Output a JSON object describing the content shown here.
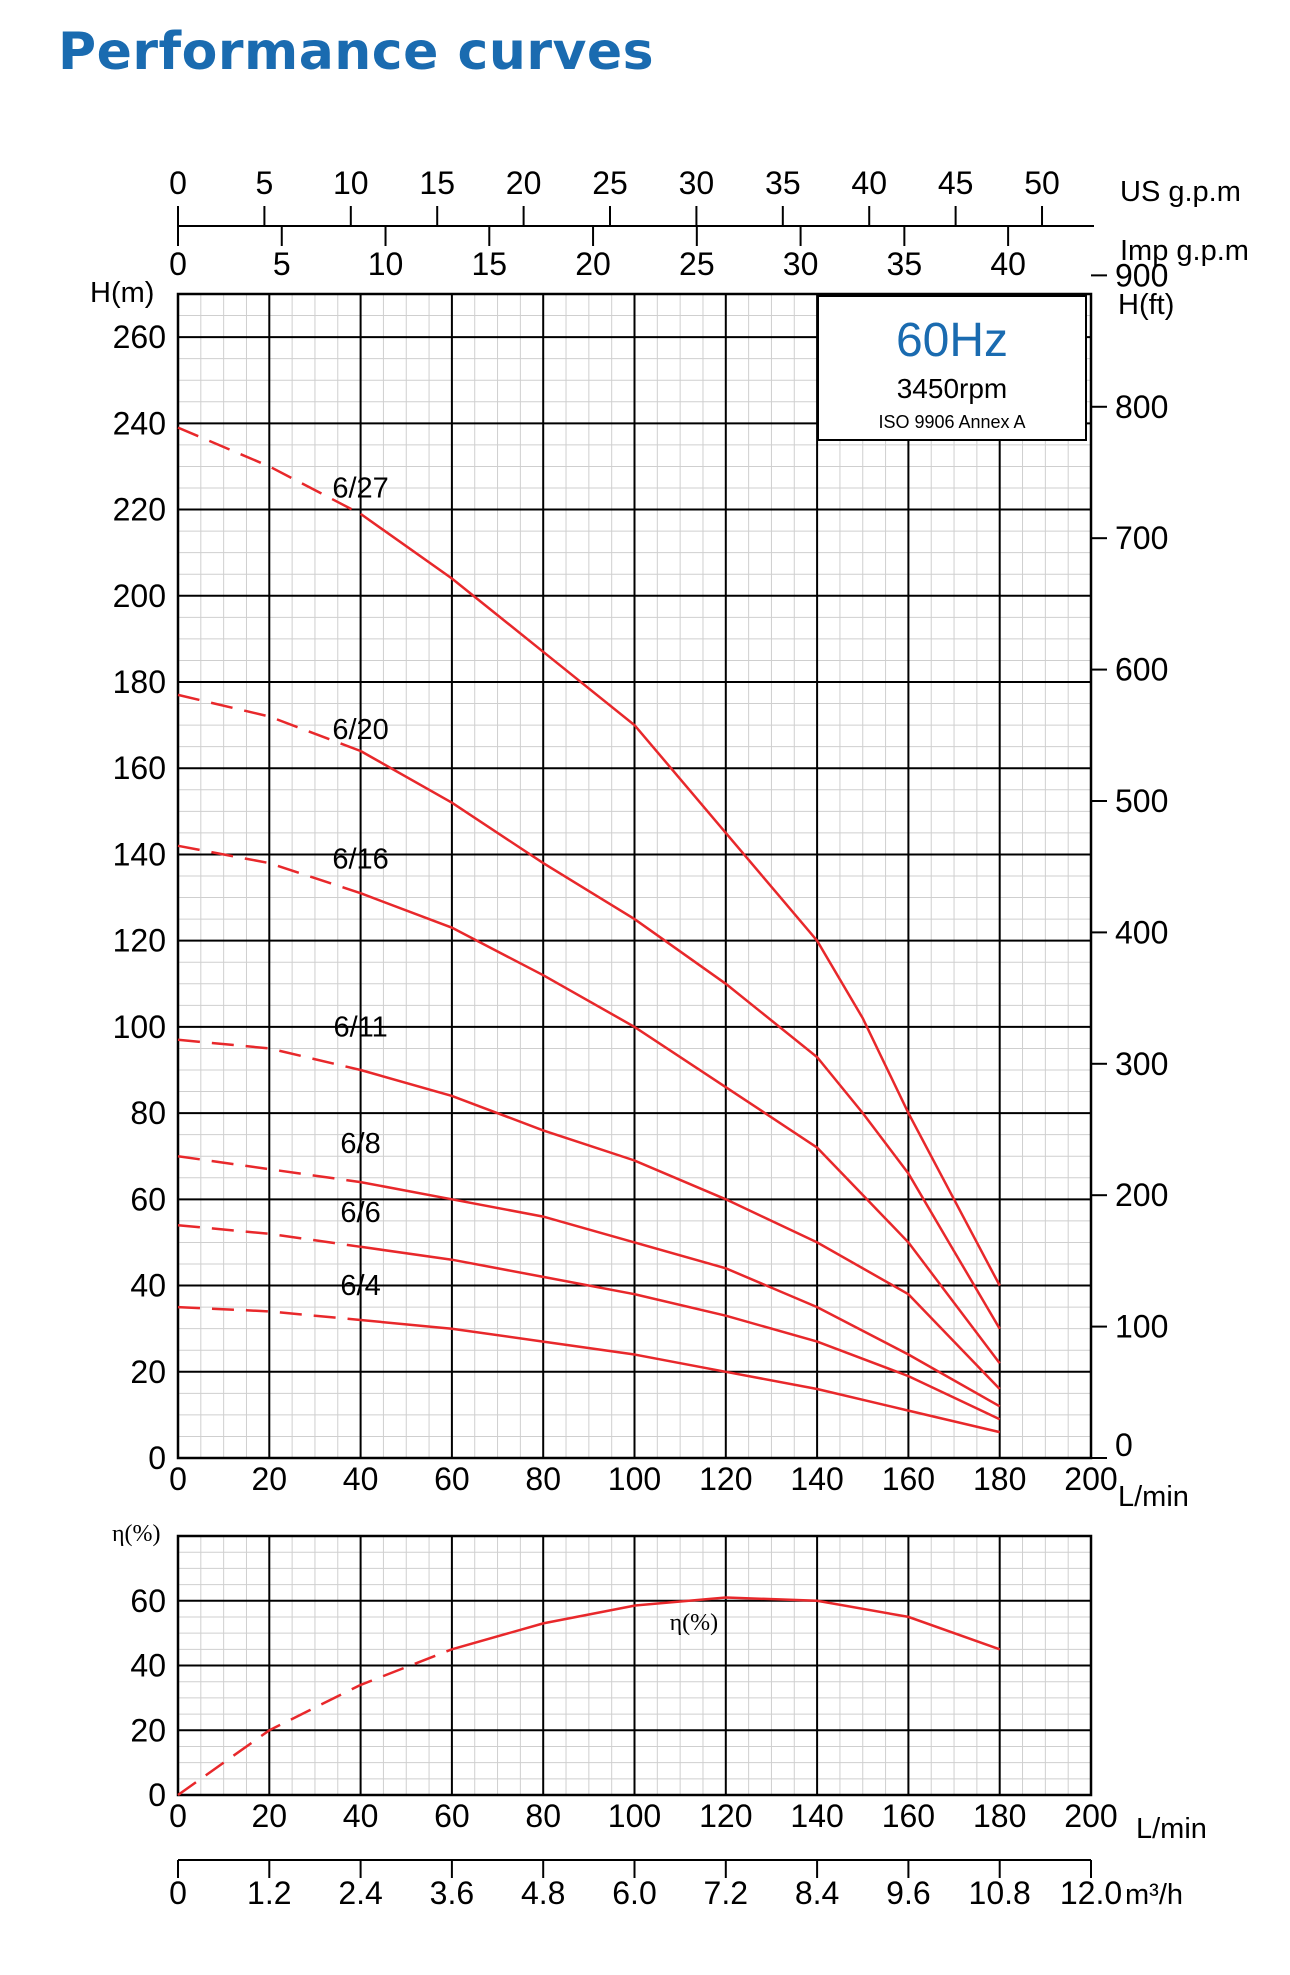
{
  "page": {
    "title": "Performance curves",
    "frequency": "60Hz",
    "speed": "3450rpm",
    "standard": "ISO 9906 Annex A"
  },
  "colors": {
    "title": "#1a6bb0",
    "curve": "#e8282b",
    "grid_major": "#000000",
    "grid_minor": "#cfcfcf"
  },
  "axes": {
    "us_gpm": {
      "unit": "US g.p.m",
      "ticks": [
        "0",
        "5",
        "10",
        "15",
        "20",
        "25",
        "30",
        "35",
        "40",
        "45",
        "50"
      ]
    },
    "imp_gpm": {
      "unit": "Imp g.p.m",
      "ticks": [
        "0",
        "5",
        "10",
        "15",
        "20",
        "25",
        "30",
        "35",
        "40"
      ]
    },
    "head_m": {
      "unit": "H(m)",
      "ticks": [
        "0",
        "20",
        "40",
        "60",
        "80",
        "100",
        "120",
        "140",
        "160",
        "180",
        "200",
        "220",
        "240",
        "260"
      ]
    },
    "head_ft": {
      "unit": "H(ft)",
      "ticks": [
        "0",
        "100",
        "200",
        "300",
        "400",
        "500",
        "600",
        "700",
        "800",
        "900"
      ]
    },
    "flow_lmin": {
      "unit": "L/min",
      "ticks": [
        "0",
        "20",
        "40",
        "60",
        "80",
        "100",
        "120",
        "140",
        "160",
        "180",
        "200"
      ]
    },
    "eff": {
      "unit": "η(%)",
      "ticks": [
        "0",
        "20",
        "40",
        "60"
      ]
    },
    "flow_lmin_bottom": {
      "unit": "L/min",
      "ticks": [
        "0",
        "20",
        "40",
        "60",
        "80",
        "100",
        "120",
        "140",
        "160",
        "180",
        "200"
      ]
    },
    "flow_m3h": {
      "unit": "m³/h",
      "ticks": [
        "0",
        "1.2",
        "2.4",
        "3.6",
        "4.8",
        "6.0",
        "7.2",
        "8.4",
        "9.6",
        "10.8",
        "12.0"
      ]
    }
  },
  "chart_data": [
    {
      "type": "line",
      "xlabel": "L/min",
      "ylabel": "H(m)",
      "xlim": [
        0,
        200
      ],
      "ylim": [
        0,
        270
      ],
      "grid": true,
      "series": [
        {
          "name": "6/27",
          "x": [
            0,
            20,
            40,
            60,
            80,
            100,
            120,
            140,
            150,
            160,
            170,
            180
          ],
          "y": [
            239,
            230,
            219,
            204,
            187,
            170,
            145,
            120,
            102,
            80,
            60,
            40
          ]
        },
        {
          "name": "6/20",
          "x": [
            0,
            20,
            40,
            60,
            80,
            100,
            120,
            140,
            150,
            160,
            170,
            180
          ],
          "y": [
            177,
            172,
            164,
            152,
            138,
            125,
            110,
            93,
            80,
            66,
            48,
            30
          ]
        },
        {
          "name": "6/16",
          "x": [
            0,
            20,
            40,
            60,
            80,
            100,
            120,
            140,
            150,
            160,
            170,
            180
          ],
          "y": [
            142,
            138,
            131,
            123,
            112,
            100,
            86,
            72,
            61,
            50,
            36,
            22
          ]
        },
        {
          "name": "6/11",
          "x": [
            0,
            20,
            40,
            60,
            80,
            100,
            120,
            140,
            160,
            180
          ],
          "y": [
            97,
            95,
            90,
            84,
            76,
            69,
            60,
            50,
            38,
            16
          ]
        },
        {
          "name": "6/8",
          "x": [
            0,
            20,
            40,
            60,
            80,
            100,
            120,
            140,
            160,
            180
          ],
          "y": [
            70,
            67,
            64,
            60,
            56,
            50,
            44,
            35,
            24,
            12
          ]
        },
        {
          "name": "6/6",
          "x": [
            0,
            20,
            40,
            60,
            80,
            100,
            120,
            140,
            160,
            180
          ],
          "y": [
            54,
            52,
            49,
            46,
            42,
            38,
            33,
            27,
            19,
            9
          ]
        },
        {
          "name": "6/4",
          "x": [
            0,
            20,
            40,
            60,
            80,
            100,
            120,
            140,
            160,
            180
          ],
          "y": [
            35,
            34,
            32,
            30,
            27,
            24,
            20,
            16,
            11,
            6
          ]
        }
      ]
    },
    {
      "type": "line",
      "xlabel": "L/min",
      "ylabel": "η(%)",
      "xlim": [
        0,
        200
      ],
      "ylim": [
        0,
        80
      ],
      "grid": true,
      "series": [
        {
          "name": "η(%)",
          "x": [
            0,
            20,
            40,
            60,
            80,
            100,
            120,
            140,
            160,
            180
          ],
          "y": [
            0,
            20,
            34,
            45,
            53,
            58.5,
            61,
            60,
            55,
            45
          ]
        }
      ]
    }
  ]
}
